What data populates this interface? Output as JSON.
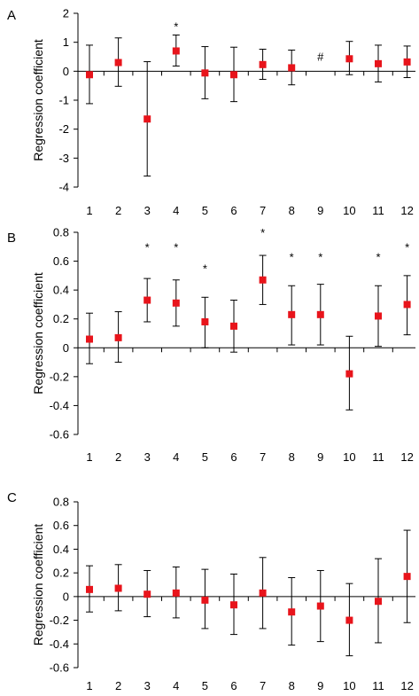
{
  "chart_data": [
    {
      "type": "scatter",
      "panel": "A",
      "ylabel": "Regression coefficient",
      "categories": [
        "1",
        "2",
        "3",
        "4",
        "5",
        "6",
        "7",
        "8",
        "9",
        "10",
        "11",
        "12"
      ],
      "ylim": [
        -4,
        2
      ],
      "yticks": [
        "2",
        "1",
        "0",
        "-1",
        "-2",
        "-3",
        "-4"
      ],
      "ytick_values": [
        2,
        1,
        0,
        -1,
        -2,
        -3,
        -4
      ],
      "values": [
        -0.12,
        0.3,
        -1.65,
        0.7,
        -0.06,
        -0.12,
        0.23,
        0.12,
        null,
        0.43,
        0.26,
        0.32
      ],
      "err_low": [
        -1.12,
        -0.52,
        -3.62,
        0.18,
        -0.95,
        -1.05,
        -0.28,
        -0.47,
        null,
        -0.12,
        -0.37,
        -0.22
      ],
      "err_high": [
        0.9,
        1.15,
        0.33,
        1.25,
        0.85,
        0.83,
        0.76,
        0.73,
        null,
        1.03,
        0.9,
        0.87
      ],
      "annotations": [
        {
          "category": "4",
          "text": "*",
          "y": 1.55
        },
        {
          "category": "9",
          "text": "#",
          "y": 0.52
        }
      ]
    },
    {
      "type": "scatter",
      "panel": "B",
      "ylabel": "Regression coefficient",
      "categories": [
        "1",
        "2",
        "3",
        "4",
        "5",
        "6",
        "7",
        "8",
        "9",
        "10",
        "11",
        "12"
      ],
      "ylim": [
        -0.6,
        0.8
      ],
      "yticks": [
        "0.8",
        "0.6",
        "0.4",
        "0.2",
        "0",
        "-0.2",
        "-0.4",
        "-0.6"
      ],
      "ytick_values": [
        0.8,
        0.6,
        0.4,
        0.2,
        0,
        -0.2,
        -0.4,
        -0.6
      ],
      "values": [
        0.06,
        0.07,
        0.33,
        0.31,
        0.18,
        0.15,
        0.47,
        0.23,
        0.23,
        -0.18,
        0.22,
        0.3
      ],
      "err_low": [
        -0.11,
        -0.1,
        0.18,
        0.15,
        0.0,
        -0.03,
        0.3,
        0.02,
        0.02,
        -0.43,
        0.01,
        0.09
      ],
      "err_high": [
        0.24,
        0.25,
        0.48,
        0.47,
        0.35,
        0.33,
        0.64,
        0.43,
        0.44,
        0.08,
        0.43,
        0.5
      ],
      "annotations": [
        {
          "category": "3",
          "text": "*",
          "y": 0.7
        },
        {
          "category": "4",
          "text": "*",
          "y": 0.7
        },
        {
          "category": "5",
          "text": "*",
          "y": 0.55
        },
        {
          "category": "7",
          "text": "*",
          "y": 0.8
        },
        {
          "category": "8",
          "text": "*",
          "y": 0.63
        },
        {
          "category": "9",
          "text": "*",
          "y": 0.63
        },
        {
          "category": "11",
          "text": "*",
          "y": 0.63
        },
        {
          "category": "12",
          "text": "*",
          "y": 0.7
        }
      ]
    },
    {
      "type": "scatter",
      "panel": "C",
      "ylabel": "Regression coefficient",
      "categories": [
        "1",
        "2",
        "3",
        "4",
        "5",
        "6",
        "7",
        "8",
        "9",
        "10",
        "11",
        "12"
      ],
      "ylim": [
        -0.6,
        0.8
      ],
      "yticks": [
        "0.8",
        "0.6",
        "0.4",
        "0.2",
        "0",
        "-0.2",
        "-0.4",
        "-0.6"
      ],
      "ytick_values": [
        0.8,
        0.6,
        0.4,
        0.2,
        0,
        -0.2,
        -0.4,
        -0.6
      ],
      "values": [
        0.06,
        0.07,
        0.02,
        0.03,
        -0.03,
        -0.07,
        0.03,
        -0.13,
        -0.08,
        -0.2,
        -0.04,
        0.17
      ],
      "err_low": [
        -0.13,
        -0.12,
        -0.17,
        -0.18,
        -0.27,
        -0.32,
        -0.27,
        -0.41,
        -0.38,
        -0.5,
        -0.39,
        -0.22
      ],
      "err_high": [
        0.26,
        0.27,
        0.22,
        0.25,
        0.23,
        0.19,
        0.33,
        0.16,
        0.22,
        0.11,
        0.32,
        0.56
      ],
      "annotations": []
    }
  ],
  "colors": {
    "marker": "#e8141b",
    "axis": "#000000",
    "errorbar": "#000000"
  }
}
